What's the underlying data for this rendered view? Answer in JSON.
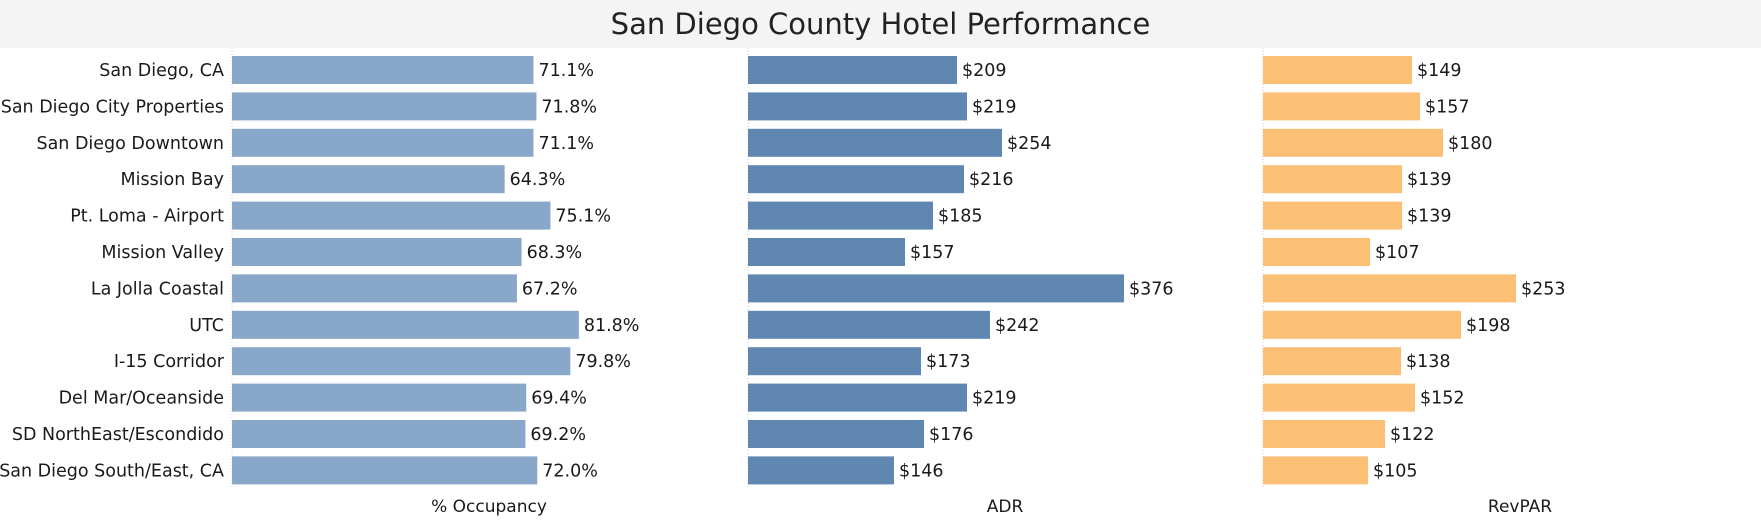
{
  "chart_data": {
    "type": "bar",
    "title": "San Diego County Hotel Performance",
    "categories": [
      "San Diego, CA",
      "San Diego City Properties",
      "San Diego Downtown",
      "Mission Bay",
      "Pt. Loma - Airport",
      "Mission Valley",
      "La Jolla Coastal",
      "UTC",
      "I-15 Corridor",
      "Del Mar/Oceanside",
      "SD NorthEast/Escondido",
      "San Diego South/East, CA"
    ],
    "series": [
      {
        "name": "% Occupancy",
        "color": "#89a7c8",
        "values": [
          71.1,
          71.8,
          71.1,
          64.3,
          75.1,
          68.3,
          67.2,
          81.8,
          79.8,
          69.4,
          69.2,
          72.0
        ],
        "labels": [
          "71.1%",
          "71.8%",
          "71.1%",
          "64.3%",
          "75.1%",
          "68.3%",
          "67.2%",
          "81.8%",
          "79.8%",
          "69.4%",
          "69.2%",
          "72.0%"
        ]
      },
      {
        "name": "ADR",
        "color": "#5f87b1",
        "values": [
          209,
          219,
          254,
          216,
          185,
          157,
          376,
          242,
          173,
          219,
          176,
          146
        ],
        "labels": [
          "$209",
          "$219",
          "$254",
          "$216",
          "$185",
          "$157",
          "$376",
          "$242",
          "$173",
          "$219",
          "$176",
          "$146"
        ]
      },
      {
        "name": "RevPAR",
        "color": "#fbbf75",
        "values": [
          149,
          157,
          180,
          139,
          139,
          107,
          253,
          198,
          138,
          152,
          122,
          105
        ],
        "labels": [
          "$149",
          "$157",
          "$180",
          "$139",
          "$139",
          "$107",
          "$253",
          "$198",
          "$138",
          "$152",
          "$122",
          "$105"
        ]
      }
    ],
    "xlim": [
      [
        0,
        100
      ],
      [
        0,
        440
      ],
      [
        0,
        440
      ]
    ],
    "grid": false,
    "legend": "none"
  }
}
